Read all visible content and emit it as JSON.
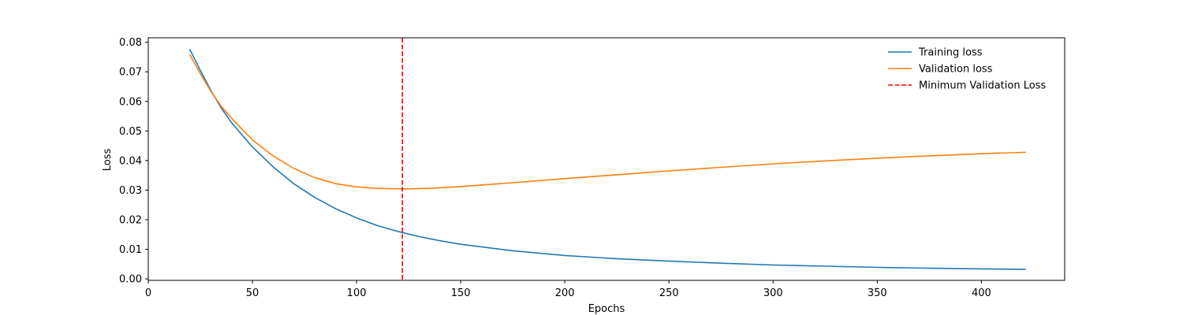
{
  "chart_data": {
    "type": "line",
    "title": "",
    "xlabel": "Epochs",
    "ylabel": "Loss",
    "xlim": [
      0,
      440
    ],
    "ylim": [
      -0.0005,
      0.0815
    ],
    "xticks": [
      0,
      50,
      100,
      150,
      200,
      250,
      300,
      350,
      400
    ],
    "yticks": [
      0.0,
      0.01,
      0.02,
      0.03,
      0.04,
      0.05,
      0.06,
      0.07,
      0.08
    ],
    "ytick_labels": [
      "0.00",
      "0.01",
      "0.02",
      "0.03",
      "0.04",
      "0.05",
      "0.06",
      "0.07",
      "0.08"
    ],
    "grid": false,
    "legend_position": "top-right",
    "series": [
      {
        "name": "Training loss",
        "color": "#1f77b4",
        "style": "solid",
        "x": [
          20,
          25,
          30,
          35,
          40,
          50,
          60,
          70,
          80,
          90,
          100,
          110,
          120,
          130,
          140,
          150,
          175,
          200,
          225,
          250,
          275,
          300,
          325,
          350,
          375,
          400,
          421
        ],
        "y": [
          0.0775,
          0.0705,
          0.0638,
          0.0578,
          0.0528,
          0.0446,
          0.0378,
          0.0321,
          0.0275,
          0.0237,
          0.0206,
          0.018,
          0.016,
          0.0143,
          0.0129,
          0.0117,
          0.0095,
          0.0079,
          0.0068,
          0.006,
          0.0053,
          0.0047,
          0.0043,
          0.0039,
          0.0036,
          0.0034,
          0.0032
        ]
      },
      {
        "name": "Validation loss",
        "color": "#ff7f0e",
        "style": "solid",
        "x": [
          20,
          25,
          30,
          35,
          40,
          50,
          60,
          70,
          80,
          90,
          100,
          110,
          122,
          135,
          150,
          175,
          200,
          225,
          250,
          275,
          300,
          325,
          350,
          375,
          400,
          421
        ],
        "y": [
          0.0757,
          0.0694,
          0.0635,
          0.0584,
          0.0543,
          0.047,
          0.0415,
          0.0373,
          0.0342,
          0.0322,
          0.0311,
          0.0306,
          0.0304,
          0.0306,
          0.0312,
          0.0325,
          0.0339,
          0.0352,
          0.0365,
          0.0377,
          0.0389,
          0.0399,
          0.0408,
          0.0416,
          0.0423,
          0.0428
        ]
      }
    ],
    "vlines": [
      {
        "name": "Minimum Validation Loss",
        "x": 122,
        "color": "#ff0000",
        "style": "dashed"
      }
    ]
  }
}
